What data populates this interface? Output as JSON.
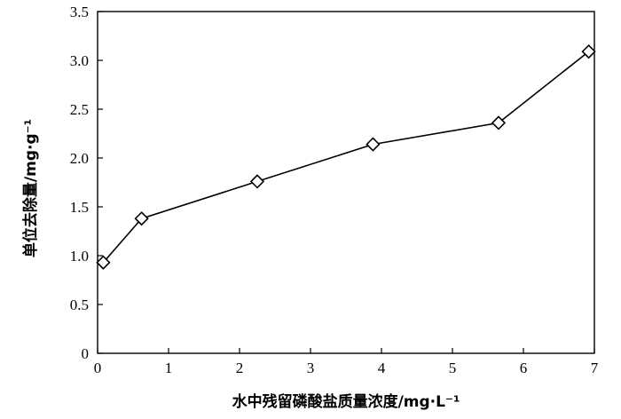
{
  "chart_data": {
    "type": "line",
    "xlabel": "水中残留磷酸盐质量浓度/mg·L⁻¹",
    "ylabel": "单位去除量/mg·g⁻¹",
    "xlim": [
      0,
      7
    ],
    "ylim": [
      0,
      3.5
    ],
    "x_ticks": [
      "0",
      "1",
      "2",
      "3",
      "4",
      "5",
      "6",
      "7"
    ],
    "y_ticks": [
      "0",
      "0.5",
      "1.0",
      "1.5",
      "2.0",
      "2.5",
      "3.0",
      "3.5"
    ],
    "grid": false,
    "marker": "diamond",
    "series": [
      {
        "x": [
          0.08,
          0.62,
          2.25,
          3.88,
          5.65,
          6.92
        ],
        "y": [
          0.93,
          1.38,
          1.76,
          2.14,
          2.36,
          3.09
        ]
      }
    ]
  }
}
